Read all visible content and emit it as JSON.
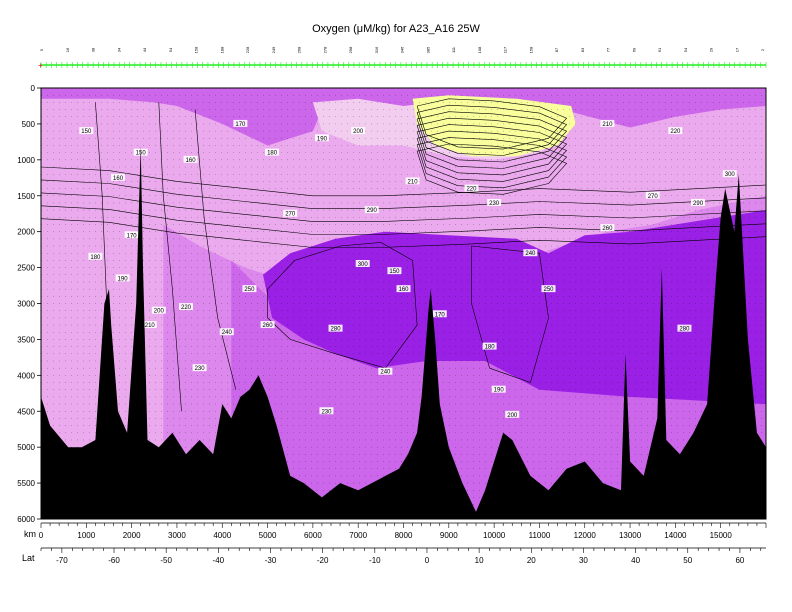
{
  "chart_data": {
    "type": "section",
    "title": "Oxygen (μM/kg) for A23_A16 25W",
    "x_axis": {
      "label": "km",
      "range": [
        0,
        16000
      ],
      "ticks": [
        0,
        1000,
        2000,
        3000,
        4000,
        5000,
        6000,
        7000,
        8000,
        9000,
        10000,
        11000,
        12000,
        13000,
        14000,
        15000
      ]
    },
    "lat_axis": {
      "label": "Lat",
      "range": [
        -74,
        65
      ],
      "ticks": [
        -70,
        -60,
        -50,
        -40,
        -30,
        -20,
        -10,
        0,
        10,
        20,
        30,
        40,
        50,
        60
      ]
    },
    "y_axis": {
      "label": "",
      "range": [
        0,
        6000
      ],
      "inverted": true,
      "ticks": [
        0,
        500,
        1000,
        1500,
        2000,
        2500,
        3000,
        3500,
        4000,
        4500,
        5000,
        5500,
        6000
      ]
    },
    "station_labels": [
      "5",
      "16",
      "38",
      "34",
      "44",
      "54",
      "158",
      "188",
      "228",
      "249",
      "268",
      "278",
      "298",
      "316",
      "346",
      "385",
      "111",
      "108",
      "117",
      "158",
      "87",
      "83",
      "77",
      "69",
      "61",
      "54",
      "29",
      "17",
      "2"
    ],
    "contour_labels": [
      "150",
      "160",
      "170",
      "180",
      "190",
      "200",
      "210",
      "220",
      "230",
      "240",
      "250",
      "260",
      "270",
      "280",
      "290",
      "300"
    ],
    "layer_colors": [
      "#eba9ee",
      "#dd88ec",
      "#cc66ea",
      "#9b20e6",
      "#eba9ee",
      "#cc66ea",
      "#f2cdf0",
      "#f8ff9c",
      "#000000"
    ]
  }
}
